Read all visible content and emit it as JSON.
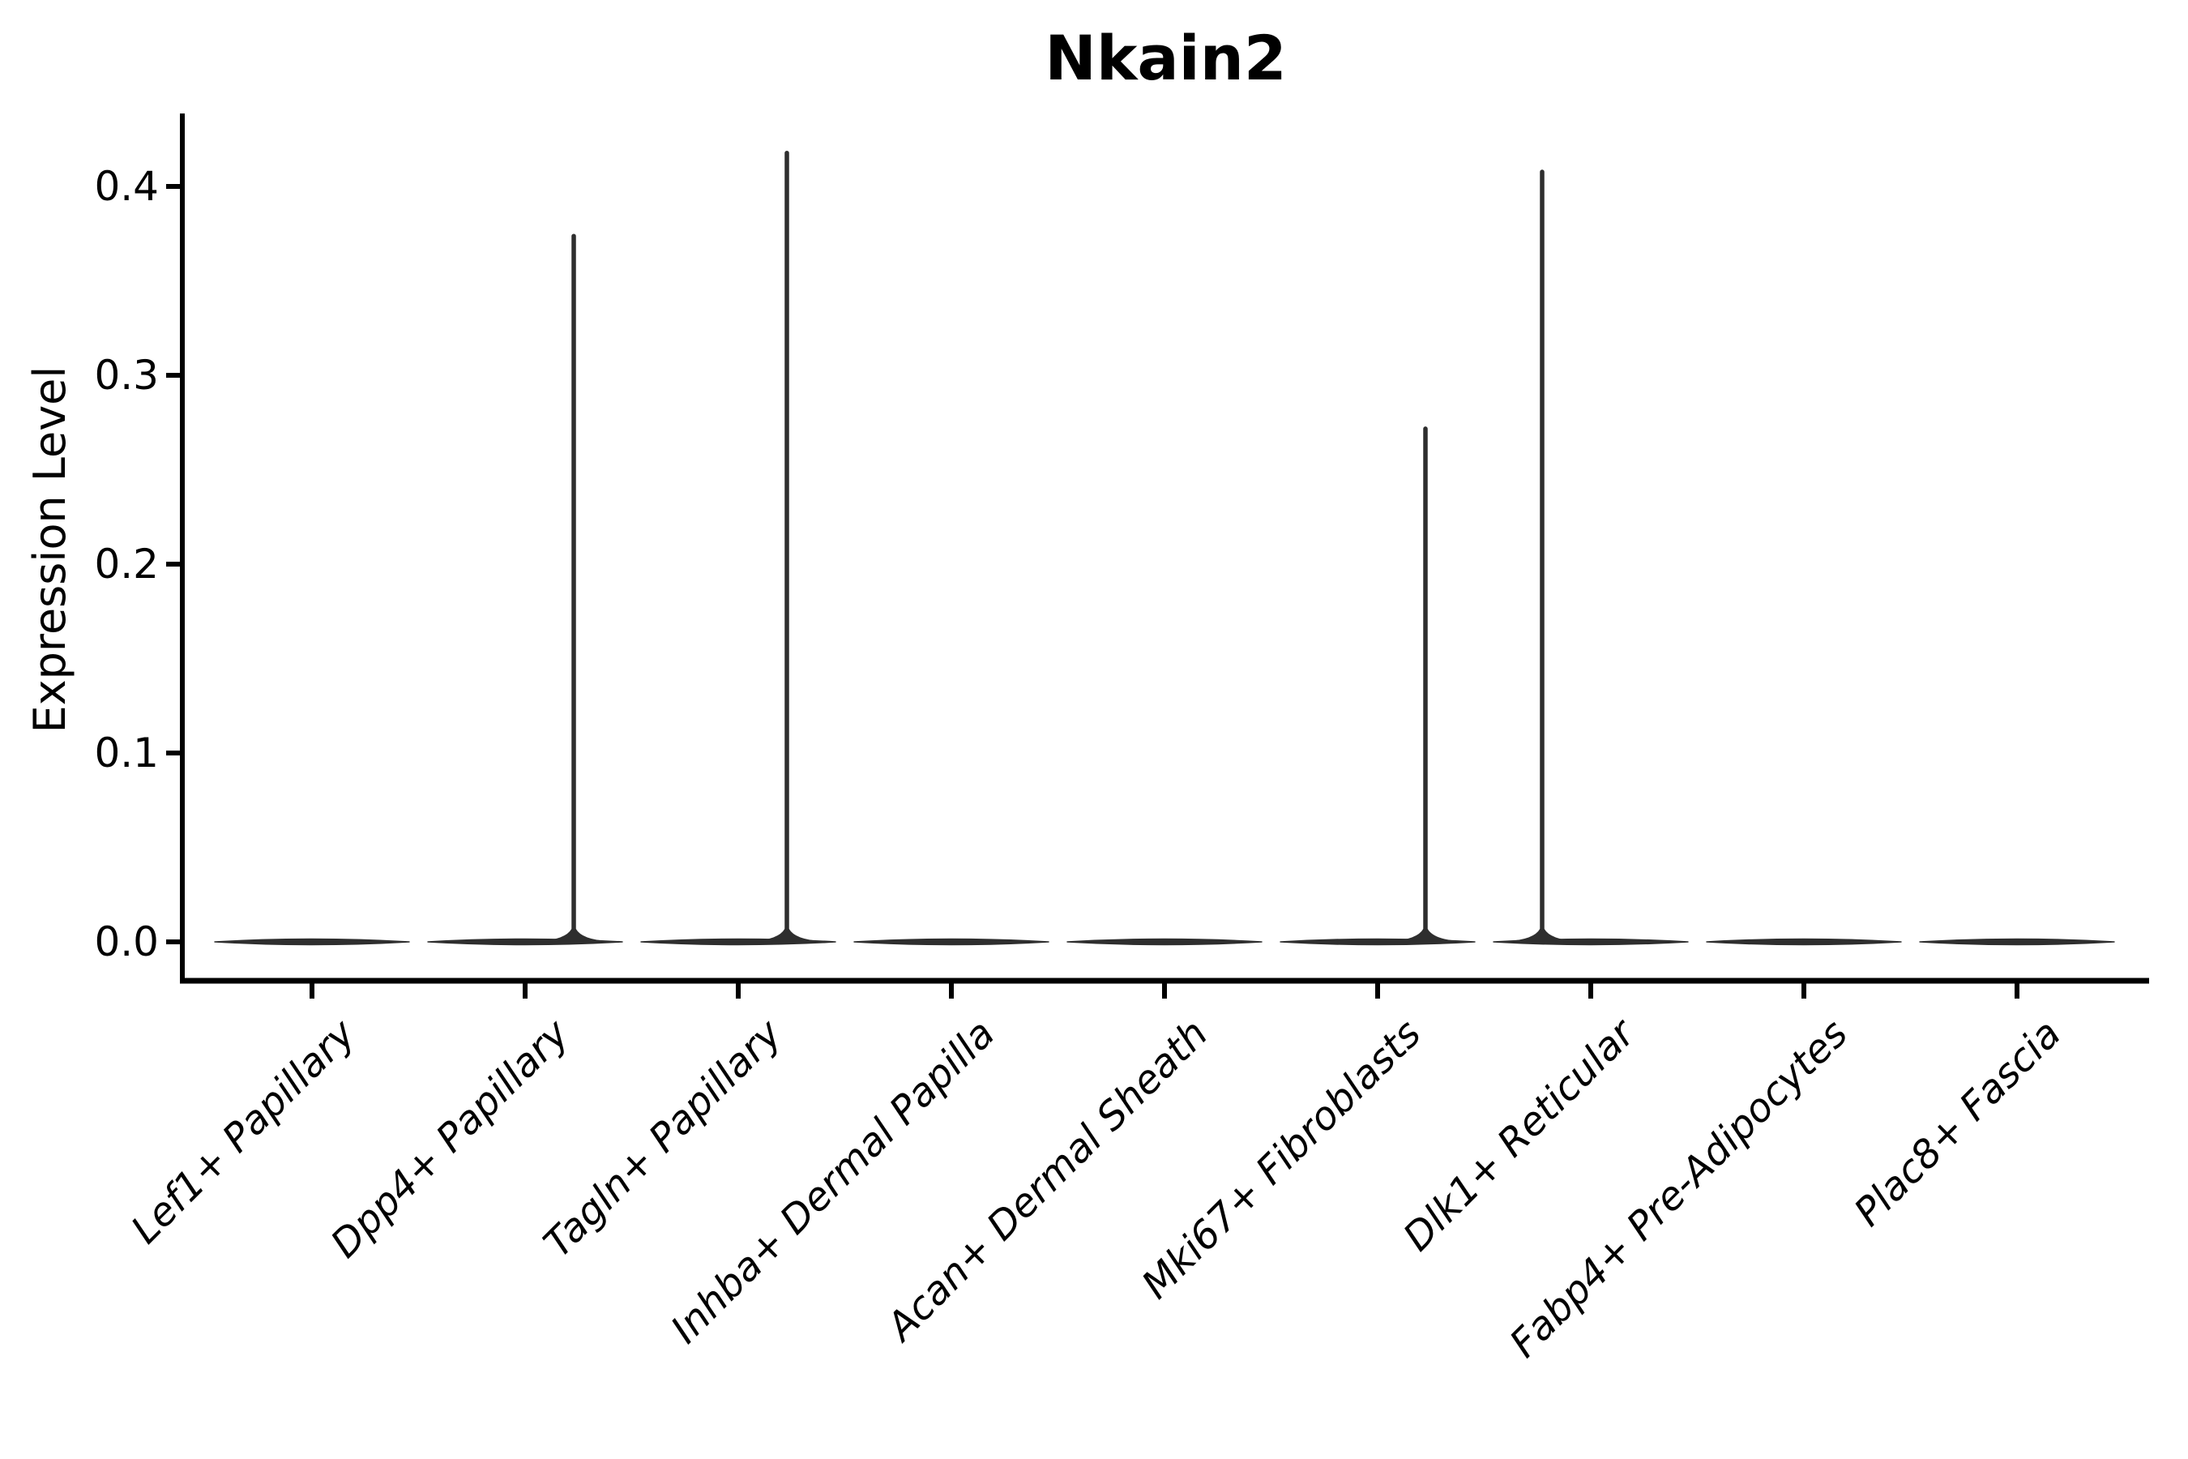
{
  "figure": {
    "title": "Nkain2",
    "ylabel": "Expression Level"
  },
  "colors": {
    "violin": "#2e2e2e",
    "axis": "#000000",
    "text": "#000000",
    "background": "#ffffff"
  },
  "chart_data": {
    "type": "violin",
    "title": "Nkain2",
    "xlabel": "",
    "ylabel": "Expression Level",
    "orientation": "vertical",
    "grid": false,
    "legend": false,
    "ylim": [
      -0.02,
      0.44
    ],
    "y_ticks": [
      "0.0",
      "0.1",
      "0.2",
      "0.3",
      "0.4"
    ],
    "categories": [
      "Lef1+ Papillary",
      "Dpp4+ Papillary",
      "Tagln+ Papillary",
      "Inhba+ Dermal Papilla",
      "Acan+ Dermal Sheath",
      "Mki67+ Fibroblasts",
      "Dlk1+ Reticular",
      "Fabp4+ Pre-Adipocytes",
      "Plac8+ Fascia"
    ],
    "violins": [
      {
        "category": "Lef1+ Papillary",
        "bulk_value": 0.0,
        "max_expression": 0.0,
        "has_spike": false,
        "spike_offset_frac": 0
      },
      {
        "category": "Dpp4+ Papillary",
        "bulk_value": 0.0,
        "max_expression": 0.375,
        "has_spike": true,
        "spike_offset_frac": 0.228
      },
      {
        "category": "Tagln+ Papillary",
        "bulk_value": 0.0,
        "max_expression": 0.419,
        "has_spike": true,
        "spike_offset_frac": 0.228
      },
      {
        "category": "Inhba+ Dermal Papilla",
        "bulk_value": 0.0,
        "max_expression": 0.0,
        "has_spike": false,
        "spike_offset_frac": 0
      },
      {
        "category": "Acan+ Dermal Sheath",
        "bulk_value": 0.0,
        "max_expression": 0.0,
        "has_spike": false,
        "spike_offset_frac": 0
      },
      {
        "category": "Mki67+ Fibroblasts",
        "bulk_value": 0.0,
        "max_expression": 0.273,
        "has_spike": true,
        "spike_offset_frac": 0.224
      },
      {
        "category": "Dlk1+ Reticular",
        "bulk_value": 0.0,
        "max_expression": 0.409,
        "has_spike": true,
        "spike_offset_frac": -0.228
      },
      {
        "category": "Fabp4+ Pre-Adipocytes",
        "bulk_value": 0.0,
        "max_expression": 0.0,
        "has_spike": false,
        "spike_offset_frac": 0
      },
      {
        "category": "Plac8+ Fascia",
        "bulk_value": 0.0,
        "max_expression": 0.0,
        "has_spike": false,
        "spike_offset_frac": 0
      }
    ]
  }
}
